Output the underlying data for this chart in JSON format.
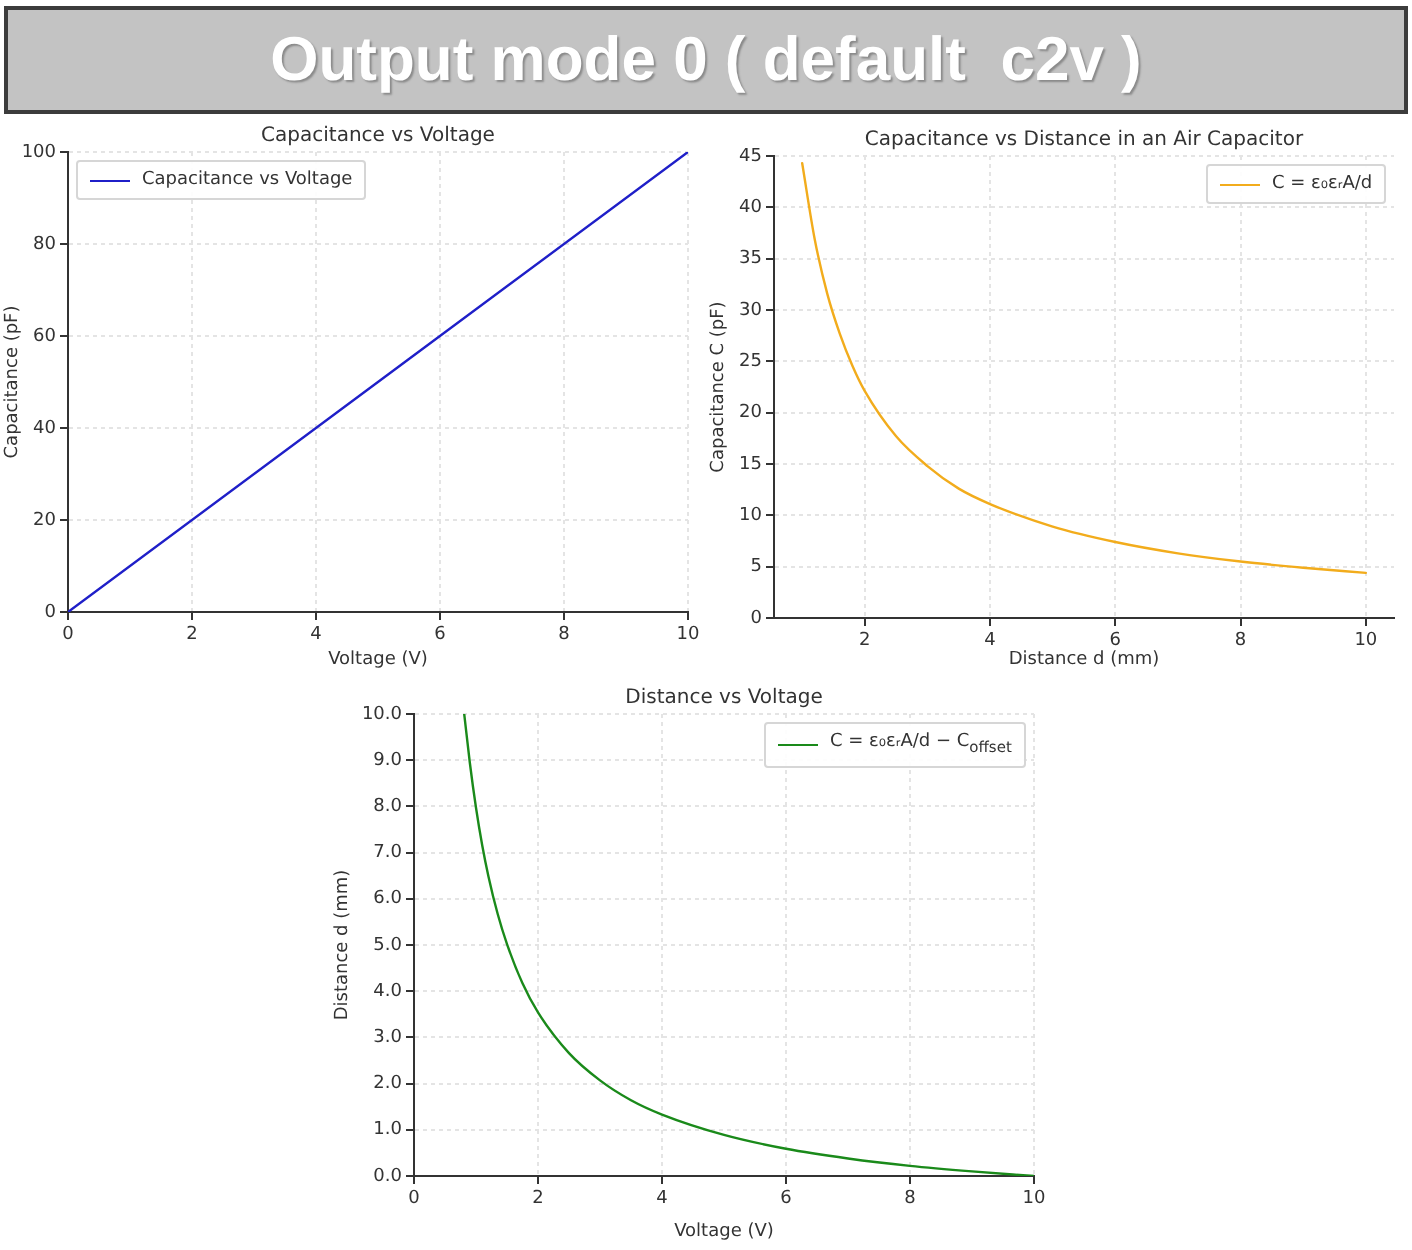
{
  "chart_data": [
    {
      "type": "other",
      "title": "Output mode 0 ( default  c2v )"
    },
    {
      "type": "line",
      "title": "Capacitance vs Voltage",
      "xlabel": "Voltage (V)",
      "ylabel": "Capacitance (pF)",
      "x": [
        0,
        10
      ],
      "series": [
        {
          "name": "Capacitance vs Voltage",
          "color": "#1f1fc8",
          "values": [
            0,
            100
          ]
        }
      ],
      "xlim": [
        0,
        10
      ],
      "ylim": [
        0,
        100
      ],
      "xticks": [
        0,
        2,
        4,
        6,
        8,
        10
      ],
      "yticks": [
        0,
        20,
        40,
        60,
        80,
        100
      ],
      "grid": true,
      "legend": "top left",
      "line_style": "solid"
    },
    {
      "type": "line",
      "title": "Capacitance vs Distance in an Air Capacitor",
      "xlabel": "Distance d (mm)",
      "ylabel": "Capacitance C (pF)",
      "x": [
        1,
        1.2,
        1.4,
        1.6,
        1.8,
        2,
        2.5,
        3,
        3.5,
        4,
        5,
        6,
        7,
        8,
        9,
        10
      ],
      "series": [
        {
          "name": "C = ε₀εᵣA/d",
          "color": "#f2ac1c",
          "values": [
            44.3,
            36.9,
            31.6,
            27.7,
            24.6,
            22.1,
            17.7,
            14.8,
            12.6,
            11.1,
            8.9,
            7.4,
            6.3,
            5.5,
            4.9,
            4.4
          ]
        }
      ],
      "xlim": [
        0.55,
        10.45
      ],
      "ylim": [
        0,
        45
      ],
      "xticks": [
        2,
        4,
        6,
        8,
        10
      ],
      "yticks": [
        0,
        5,
        10,
        15,
        20,
        25,
        30,
        35,
        40,
        45
      ],
      "grid": true,
      "legend": "top right",
      "line_style": "solid"
    },
    {
      "type": "line",
      "title": "Distance vs Voltage",
      "xlabel": "Voltage (V)",
      "ylabel": "Distance d (mm)",
      "x": [
        0.81,
        0.9,
        1.0,
        1.1,
        1.2,
        1.35,
        1.5,
        1.75,
        2,
        2.5,
        3,
        3.5,
        4,
        5,
        6,
        7,
        8,
        9,
        10
      ],
      "series": [
        {
          "name": "C = ε₀εᵣA/d − C$_{offset}$",
          "color": "#1a8a1a",
          "values": [
            10.0,
            8.95,
            7.97,
            7.16,
            6.49,
            5.67,
            5.02,
            4.17,
            3.54,
            2.66,
            2.07,
            1.64,
            1.33,
            0.89,
            0.59,
            0.38,
            0.22,
            0.1,
            0.0
          ]
        }
      ],
      "xlim": [
        0,
        10
      ],
      "ylim": [
        0,
        10
      ],
      "xticks": [
        0,
        2,
        4,
        6,
        8,
        10
      ],
      "yticks": [
        {
          "value": 0,
          "label": "0.0"
        },
        {
          "value": 1,
          "label": "1.0"
        },
        {
          "value": 2,
          "label": "2.0"
        },
        {
          "value": 3,
          "label": "3.0"
        },
        {
          "value": 4,
          "label": "4.0"
        },
        {
          "value": 5,
          "label": "5.0"
        },
        {
          "value": 6,
          "label": "6.0"
        },
        {
          "value": 7,
          "label": "7.0"
        },
        {
          "value": 8,
          "label": "8.0"
        },
        {
          "value": 9,
          "label": "9.0"
        },
        {
          "value": 10,
          "label": "10.0"
        }
      ],
      "grid": true,
      "legend": "top right",
      "line_style": "solid"
    }
  ]
}
